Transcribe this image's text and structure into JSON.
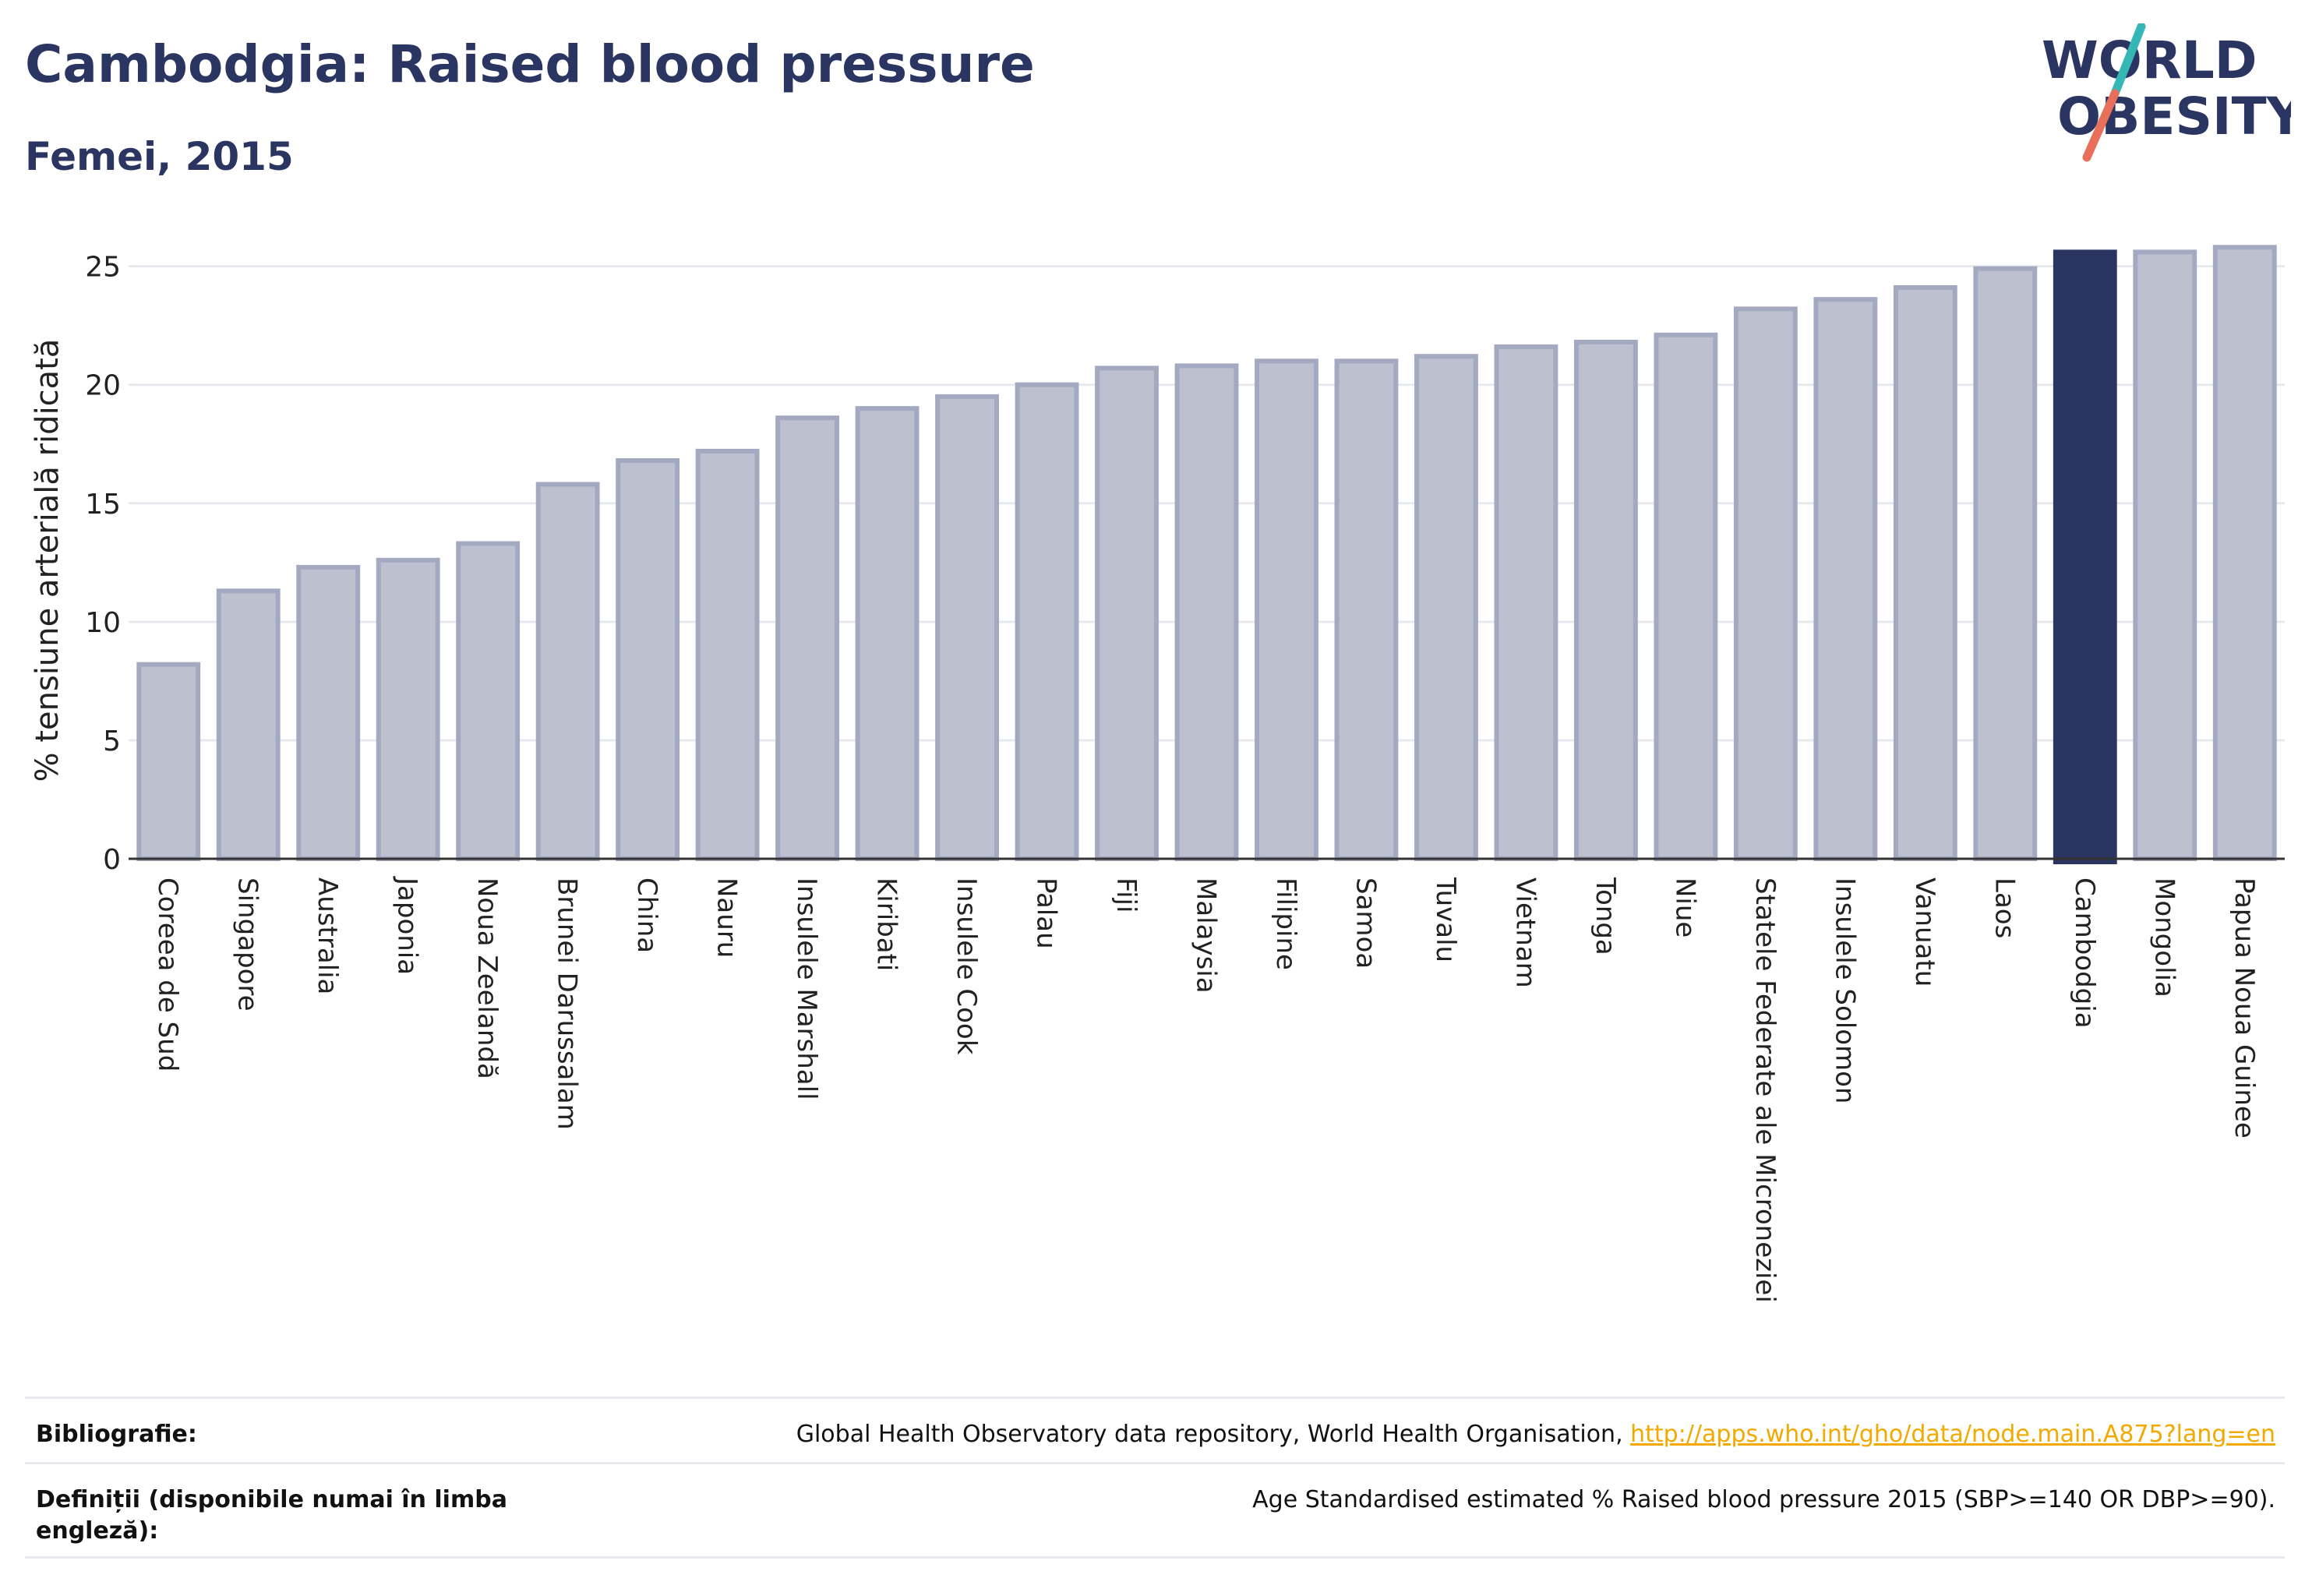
{
  "header": {
    "title": "Cambodgia: Raised blood pressure",
    "subtitle": "Femei, 2015",
    "logo_line1": "WORLD",
    "logo_line2": "OBESITY"
  },
  "colors": {
    "bar": "#bcc0cf",
    "bar_border": "#a3a9c1",
    "highlight": "#2b3561",
    "grid": "#e7e9ee",
    "axis": "#333333",
    "logo_text": "#2b3561",
    "logo_teal": "#35b7b5",
    "logo_red": "#e8705b",
    "link": "#f2a900"
  },
  "chart_data": {
    "type": "bar",
    "ylabel": "% tensiune arterială ridicată",
    "ylim": [
      0,
      26.5
    ],
    "yticks": [
      0,
      5,
      10,
      15,
      20,
      25
    ],
    "grid": true,
    "highlight": "Cambodgia",
    "categories": [
      "Coreea de Sud",
      "Singapore",
      "Australia",
      "Japonia",
      "Noua Zeelandă",
      "Brunei Darussalam",
      "China",
      "Nauru",
      "Insulele Marshall",
      "Kiribati",
      "Insulele Cook",
      "Palau",
      "Fiji",
      "Malaysia",
      "Filipine",
      "Samoa",
      "Tuvalu",
      "Vietnam",
      "Tonga",
      "Niue",
      "Statele Federate ale Microneziei",
      "Insulele Solomon",
      "Vanuatu",
      "Laos",
      "Cambodgia",
      "Mongolia",
      "Papua Noua Guinee"
    ],
    "values": [
      8.2,
      11.3,
      12.3,
      12.6,
      13.3,
      15.8,
      16.8,
      17.2,
      18.6,
      19.0,
      19.5,
      20.0,
      20.7,
      20.8,
      21.0,
      21.0,
      21.2,
      21.6,
      21.8,
      22.1,
      23.2,
      23.6,
      24.1,
      24.9,
      25.6,
      25.6,
      25.8
    ]
  },
  "footer": {
    "bib_label": "Bibliografie:",
    "bib_text": "Global Health Observatory data repository, World Health Organisation, ",
    "bib_link": "http://apps.who.int/gho/data/node.main.A875?lang=en",
    "def_label": "Definiții (disponibile numai în limba engleză):",
    "def_text": "Age Standardised estimated % Raised blood pressure 2015 (SBP>=140 OR DBP>=90)."
  }
}
